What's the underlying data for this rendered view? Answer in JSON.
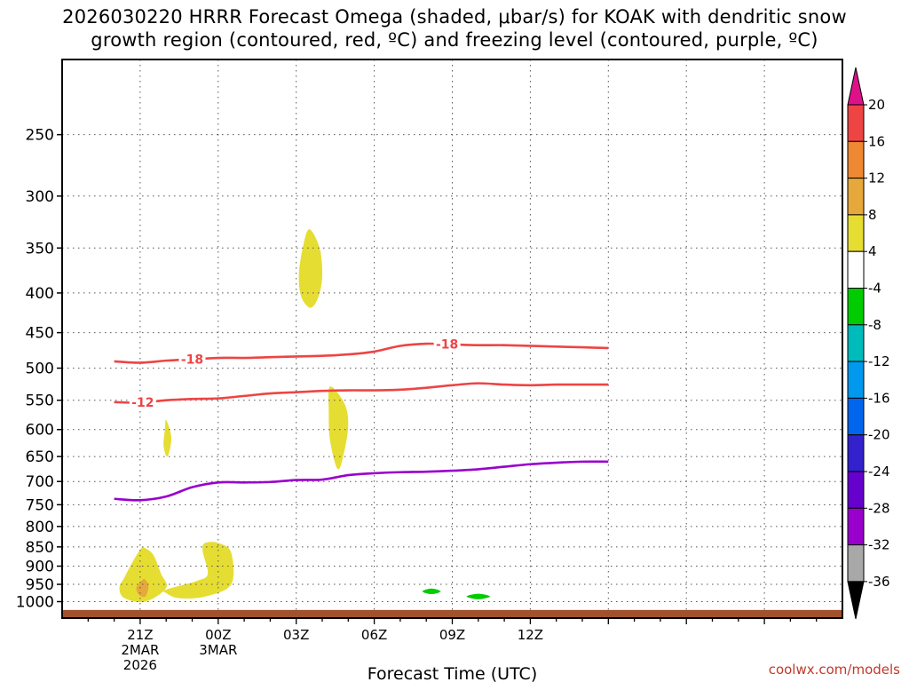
{
  "title_line1": "2026030220 HRRR Forecast Omega (shaded, μbar/s) for KOAK with dendritic snow",
  "title_line2": "growth region (contoured, red, ºC) and freezing level (contoured, purple, ºC)",
  "credit": "coolwx.com/models",
  "chart_data": {
    "type": "contour",
    "xlabel": "Forecast Time (UTC)",
    "ylabel": "",
    "x_unit": "hours from 2026-03-02 18Z",
    "xlim": [
      -3,
      27
    ],
    "x_ticks": [
      {
        "x": 0,
        "lines": [
          "21Z",
          "2MAR",
          "2026"
        ]
      },
      {
        "x": 3,
        "lines": [
          "00Z",
          "3MAR"
        ]
      },
      {
        "x": 6,
        "lines": [
          "03Z"
        ]
      },
      {
        "x": 9,
        "lines": [
          "06Z"
        ]
      },
      {
        "x": 12,
        "lines": [
          "09Z"
        ]
      },
      {
        "x": 15,
        "lines": [
          "12Z"
        ]
      }
    ],
    "y_scale": "log-pressure (hPa, inverted)",
    "ylim": [
      1050,
      200
    ],
    "y_ticks": [
      250,
      300,
      350,
      400,
      450,
      500,
      550,
      600,
      650,
      700,
      750,
      800,
      850,
      900,
      950,
      1000
    ],
    "grid": true,
    "contours": [
      {
        "name": "-18",
        "color": "#ee4444",
        "label_at": [
          {
            "x": 2.0,
            "text": "-18"
          },
          {
            "x": 11.8,
            "text": "-18"
          }
        ],
        "x": [
          -1,
          0,
          1,
          2,
          3,
          4,
          5,
          6,
          7,
          8,
          9,
          10,
          11,
          12,
          13,
          14,
          15,
          16,
          17,
          18
        ],
        "p": [
          490,
          492,
          489,
          487,
          485,
          485,
          484,
          483,
          482,
          480,
          476,
          468,
          465,
          466,
          467,
          467,
          468,
          469,
          470,
          471
        ]
      },
      {
        "name": "-12",
        "color": "#ee4444",
        "label_at": [
          {
            "x": 0.1,
            "text": "-12"
          }
        ],
        "x": [
          -1,
          0,
          1,
          2,
          3,
          4,
          5,
          6,
          7,
          8,
          9,
          10,
          11,
          12,
          13,
          14,
          15,
          16,
          17,
          18
        ],
        "p": [
          553,
          554,
          550,
          548,
          547,
          543,
          539,
          537,
          535,
          534,
          534,
          533,
          530,
          526,
          523,
          525,
          526,
          525,
          525,
          525
        ]
      },
      {
        "name": "freezing",
        "color": "#9900cc",
        "label_at": [],
        "x": [
          -1,
          0,
          1,
          2,
          3,
          4,
          5,
          6,
          7,
          8,
          9,
          10,
          11,
          12,
          13,
          14,
          15,
          16,
          17,
          18
        ],
        "p": [
          737,
          740,
          732,
          712,
          702,
          702,
          701,
          697,
          696,
          687,
          683,
          681,
          680,
          678,
          675,
          670,
          665,
          662,
          660,
          660
        ]
      }
    ],
    "omega_regions": [
      {
        "level": "4 to 8",
        "color": "#e6dd33",
        "points": [
          [
            6.5,
            331
          ],
          [
            6.9,
            350
          ],
          [
            7.0,
            380
          ],
          [
            6.85,
            405
          ],
          [
            6.55,
            418
          ],
          [
            6.2,
            405
          ],
          [
            6.1,
            380
          ],
          [
            6.25,
            350
          ]
        ]
      },
      {
        "level": "4 to 8",
        "color": "#e6dd33",
        "points": [
          [
            7.3,
            528
          ],
          [
            7.85,
            555
          ],
          [
            8.0,
            590
          ],
          [
            7.85,
            640
          ],
          [
            7.6,
            675
          ],
          [
            7.3,
            620
          ],
          [
            7.25,
            570
          ]
        ]
      },
      {
        "level": "4 to 8",
        "color": "#e6dd33",
        "points": [
          [
            1.0,
            583
          ],
          [
            1.2,
            615
          ],
          [
            1.05,
            650
          ],
          [
            0.9,
            630
          ],
          [
            0.95,
            600
          ]
        ]
      },
      {
        "level": "4 to 8",
        "color": "#e6dd33",
        "points": [
          [
            -0.6,
            930
          ],
          [
            -0.3,
            890
          ],
          [
            0.0,
            857
          ],
          [
            0.15,
            852
          ],
          [
            0.5,
            870
          ],
          [
            0.8,
            920
          ],
          [
            1.0,
            960
          ],
          [
            0.2,
            1000
          ],
          [
            -0.6,
            990
          ],
          [
            -0.8,
            960
          ]
        ]
      },
      {
        "level": "4 to 8",
        "color": "#e6dd33",
        "points": [
          [
            1.0,
            965
          ],
          [
            2.2,
            940
          ],
          [
            2.6,
            920
          ],
          [
            2.4,
            860
          ],
          [
            2.5,
            840
          ],
          [
            3.0,
            840
          ],
          [
            3.5,
            865
          ],
          [
            3.5,
            950
          ],
          [
            2.5,
            985
          ],
          [
            1.5,
            990
          ],
          [
            1.0,
            975
          ]
        ]
      },
      {
        "level": "8 to 12",
        "color": "#e6a83a",
        "points": [
          [
            -0.05,
            950
          ],
          [
            0.15,
            935
          ],
          [
            0.32,
            955
          ],
          [
            0.2,
            985
          ],
          [
            -0.05,
            980
          ],
          [
            -0.15,
            962
          ]
        ]
      },
      {
        "level": "-8 to -4",
        "color": "#00cc00",
        "points": [
          [
            10.85,
            970
          ],
          [
            11.2,
            962
          ],
          [
            11.55,
            970
          ],
          [
            11.2,
            978
          ]
        ]
      },
      {
        "level": "-8 to -4",
        "color": "#00cc00",
        "points": [
          [
            12.55,
            985
          ],
          [
            13.0,
            977
          ],
          [
            13.45,
            985
          ],
          [
            13.0,
            993
          ]
        ]
      }
    ],
    "ground_color": "#a0522d",
    "colorbar": {
      "unit": "μbar/s",
      "bands": [
        {
          "from": -40,
          "to": -36,
          "color": "#000000"
        },
        {
          "from": -36,
          "to": -32,
          "color": "#a8a8a8"
        },
        {
          "from": -32,
          "to": -28,
          "color": "#9900cc"
        },
        {
          "from": -28,
          "to": -24,
          "color": "#6600cc"
        },
        {
          "from": -24,
          "to": -20,
          "color": "#3322cc"
        },
        {
          "from": -20,
          "to": -16,
          "color": "#0066ee"
        },
        {
          "from": -16,
          "to": -12,
          "color": "#0099ee"
        },
        {
          "from": -12,
          "to": -8,
          "color": "#00bbbb"
        },
        {
          "from": -8,
          "to": -4,
          "color": "#00cc00"
        },
        {
          "from": -4,
          "to": 4,
          "color": "#ffffff"
        },
        {
          "from": 4,
          "to": 8,
          "color": "#e6dd33"
        },
        {
          "from": 8,
          "to": 12,
          "color": "#e6a83a"
        },
        {
          "from": 12,
          "to": 16,
          "color": "#ee8833"
        },
        {
          "from": 16,
          "to": 20,
          "color": "#ee4444"
        },
        {
          "from": 20,
          "to": 24,
          "color": "#dd1188"
        }
      ],
      "tick_labels": [
        "20",
        "16",
        "12",
        "8",
        "4",
        "-4",
        "-8",
        "-12",
        "-16",
        "-20",
        "-24",
        "-28",
        "-32",
        "-36"
      ]
    }
  }
}
